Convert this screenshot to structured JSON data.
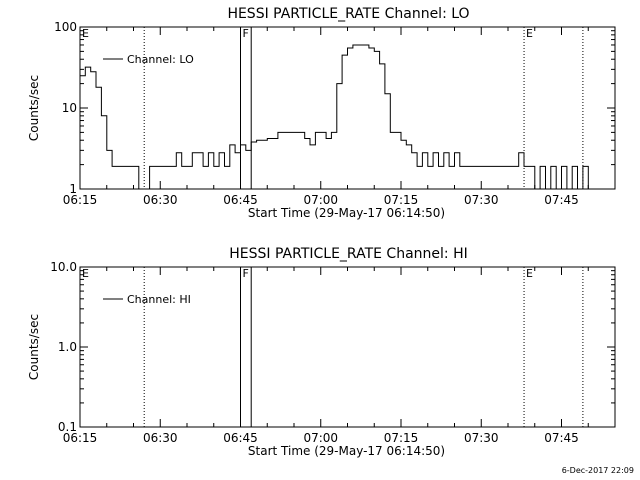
{
  "footer_date": "6-Dec-2017 22:09",
  "chart_data": [
    {
      "type": "line",
      "title": "HESSI PARTICLE_RATE Channel: LO",
      "xlabel": "Start Time (29-May-17 06:14:50)",
      "ylabel": "Counts/sec",
      "y_scale": "log",
      "ylim": [
        1,
        100
      ],
      "xlim": [
        "06:15",
        "07:55"
      ],
      "x_ticks": [
        "06:15",
        "06:30",
        "06:45",
        "07:00",
        "07:15",
        "07:30",
        "07:45"
      ],
      "y_ticks": [
        "1",
        "10",
        "100"
      ],
      "legend": {
        "label": "Channel: LO",
        "position": "top-left"
      },
      "markers": [
        {
          "label": "E",
          "time": "06:15",
          "style": "none"
        },
        {
          "time": "06:27",
          "style": "dotted"
        },
        {
          "label": "F",
          "time": "06:45",
          "style": "solid"
        },
        {
          "time": "06:47",
          "style": "solid"
        },
        {
          "label": "E",
          "time": "07:38",
          "style": "dotted"
        },
        {
          "time": "07:49",
          "style": "dotted"
        }
      ],
      "series": [
        {
          "x": [
            "06:15",
            "06:16",
            "06:17",
            "06:18",
            "06:19",
            "06:20",
            "06:21",
            "06:22",
            "06:23",
            "06:24",
            "06:25",
            "06:26",
            "06:27",
            "06:28",
            "06:30",
            "06:32",
            "06:33",
            "06:34",
            "06:36",
            "06:38",
            "06:39",
            "06:40",
            "06:41",
            "06:42",
            "06:43",
            "06:44",
            "06:45",
            "06:46",
            "06:47",
            "06:48",
            "06:50",
            "06:52",
            "06:54",
            "06:56",
            "06:57",
            "06:58",
            "06:59",
            "07:00",
            "07:01",
            "07:02",
            "07:03",
            "07:04",
            "07:05",
            "07:06",
            "07:07",
            "07:08",
            "07:09",
            "07:10",
            "07:11",
            "07:12",
            "07:13",
            "07:14",
            "07:15",
            "07:16",
            "07:17",
            "07:18",
            "07:19",
            "07:20",
            "07:21",
            "07:22",
            "07:23",
            "07:24",
            "07:25",
            "07:26",
            "07:27",
            "07:30",
            "07:33",
            "07:35",
            "07:37",
            "07:38",
            "07:39",
            "07:40",
            "07:41",
            "07:42",
            "07:43",
            "07:44",
            "07:45",
            "07:46",
            "07:47",
            "07:48",
            "07:49",
            "07:50",
            "07:51"
          ],
          "y": [
            25,
            32,
            28,
            18,
            8,
            3,
            1.9,
            1.9,
            1.9,
            1.9,
            1.9,
            1,
            1,
            1.9,
            1.9,
            1.9,
            2.8,
            1.9,
            2.8,
            1.9,
            2.8,
            1.9,
            2.8,
            1.9,
            3.5,
            2.8,
            3.5,
            3,
            3.8,
            4,
            4.2,
            5,
            5,
            5,
            4.2,
            3.5,
            5,
            5,
            4.2,
            5,
            20,
            45,
            55,
            60,
            60,
            60,
            55,
            50,
            35,
            15,
            5,
            5,
            4,
            3.5,
            2.8,
            1.9,
            2.8,
            1.9,
            2.8,
            1.9,
            2.8,
            1.9,
            2.8,
            1.9,
            1.9,
            1.9,
            1.9,
            1.9,
            2.8,
            1.9,
            1.9,
            1,
            1.9,
            1,
            1.9,
            1,
            1.9,
            1,
            1.9,
            1,
            1.9,
            1,
            1
          ]
        }
      ]
    },
    {
      "type": "line",
      "title": "HESSI PARTICLE_RATE Channel: HI",
      "xlabel": "Start Time (29-May-17 06:14:50)",
      "ylabel": "Counts/sec",
      "y_scale": "log",
      "ylim": [
        0.1,
        10
      ],
      "xlim": [
        "06:15",
        "07:55"
      ],
      "x_ticks": [
        "06:15",
        "06:30",
        "06:45",
        "07:00",
        "07:15",
        "07:30",
        "07:45"
      ],
      "y_ticks": [
        "0.1",
        "1.0",
        "10.0"
      ],
      "legend": {
        "label": "Channel: HI",
        "position": "top-left"
      },
      "markers": [
        {
          "label": "E",
          "time": "06:15",
          "style": "none"
        },
        {
          "time": "06:27",
          "style": "dotted"
        },
        {
          "label": "F",
          "time": "06:45",
          "style": "solid"
        },
        {
          "time": "06:47",
          "style": "solid"
        },
        {
          "label": "E",
          "time": "07:38",
          "style": "dotted"
        },
        {
          "time": "07:49",
          "style": "dotted"
        }
      ],
      "series": []
    }
  ]
}
